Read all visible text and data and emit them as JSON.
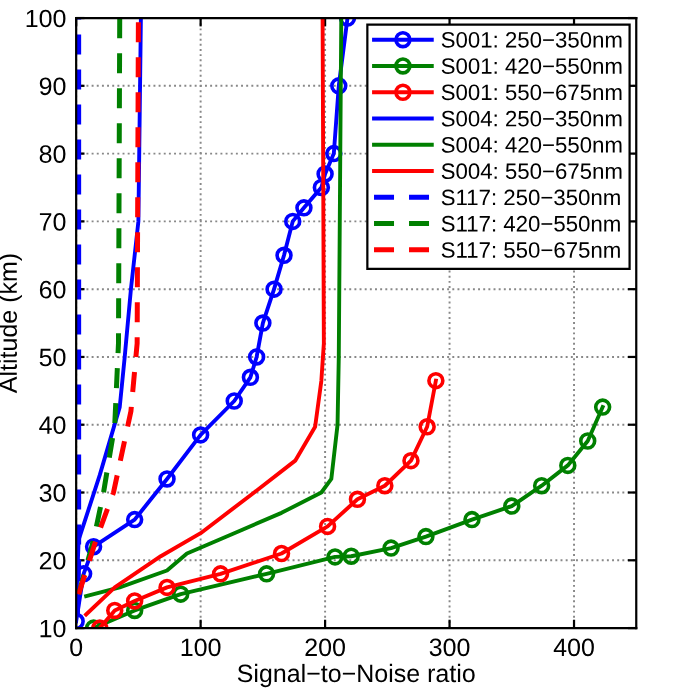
{
  "chart_data": {
    "type": "line",
    "xlabel": "Signal−to−Noise ratio",
    "ylabel": "Altitude (km)",
    "xlim": [
      0,
      450
    ],
    "xticks": [
      0,
      100,
      200,
      300,
      400
    ],
    "ylim": [
      10,
      100
    ],
    "yticks": [
      10,
      20,
      30,
      40,
      50,
      60,
      70,
      80,
      90,
      100
    ],
    "grid": true,
    "legend": "top right",
    "series": [
      {
        "name": "S001: 250−350nm",
        "color": "#0000ff",
        "marker": "circle",
        "line_style": "solid",
        "x": [
          0,
          6,
          14,
          47,
          73,
          100,
          127,
          140,
          145,
          150,
          159,
          167,
          174,
          183,
          197,
          200,
          207,
          211,
          218
        ],
        "values": [
          11,
          18,
          22,
          26,
          32,
          38.5,
          43.5,
          47,
          50,
          55,
          60,
          65,
          70,
          72,
          75,
          77,
          80,
          90,
          100
        ]
      },
      {
        "name": "S001: 420−550nm",
        "color": "#008000",
        "marker": "circle",
        "line_style": "solid",
        "x": [
          14,
          47,
          84,
          153,
          208,
          221,
          253,
          281,
          318,
          350,
          374,
          395,
          411,
          423
        ],
        "values": [
          10,
          12.6,
          15,
          18,
          20.5,
          20.6,
          21.8,
          23.5,
          26,
          28,
          31,
          34,
          37.6,
          42.6
        ]
      },
      {
        "name": "S001: 550−675nm",
        "color": "#ff0000",
        "marker": "circle",
        "line_style": "solid",
        "x": [
          19,
          31,
          47,
          73,
          116,
          165,
          202,
          226,
          248,
          269,
          282,
          289
        ],
        "values": [
          10,
          12.6,
          14,
          16,
          18,
          21,
          25,
          29,
          31,
          34.7,
          39.7,
          46.5
        ]
      },
      {
        "name": "S004: 250−350nm",
        "color": "#0000ff",
        "marker": "none",
        "line_style": "solid",
        "x": [
          0,
          2,
          19,
          35,
          39,
          44,
          50,
          52
        ],
        "values": [
          13.5,
          23,
          32.6,
          42.6,
          50,
          60,
          70,
          100
        ]
      },
      {
        "name": "S004: 420−550nm",
        "color": "#008000",
        "marker": "none",
        "line_style": "solid",
        "x": [
          8,
          35,
          73,
          89,
          127,
          165,
          197,
          205,
          210,
          211,
          213
        ],
        "values": [
          14.7,
          16,
          18.5,
          21,
          24,
          27,
          30,
          32,
          40,
          50,
          100
        ]
      },
      {
        "name": "S004: 550−675nm",
        "color": "#ff0000",
        "marker": "none",
        "line_style": "solid",
        "x": [
          8,
          31,
          68,
          100,
          143,
          176,
          192,
          197,
          199,
          198
        ],
        "values": [
          12,
          16,
          20.6,
          24,
          30,
          34.7,
          39.7,
          46.5,
          52,
          100
        ]
      },
      {
        "name": "S117: 250−350nm",
        "color": "#0000ff",
        "marker": "none",
        "line_style": "dashed",
        "x": [
          1,
          2,
          2
        ],
        "values": [
          12,
          20,
          100
        ]
      },
      {
        "name": "S117: 420−550nm",
        "color": "#008000",
        "marker": "none",
        "line_style": "dashed",
        "x": [
          2,
          14,
          22,
          31,
          34,
          35
        ],
        "values": [
          15,
          23,
          30,
          40,
          52,
          100
        ]
      },
      {
        "name": "S117: 550−675nm",
        "color": "#ff0000",
        "marker": "none",
        "line_style": "dashed",
        "x": [
          2,
          16,
          30,
          44,
          49,
          50
        ],
        "values": [
          15,
          23,
          30,
          42,
          52,
          100
        ]
      }
    ]
  }
}
